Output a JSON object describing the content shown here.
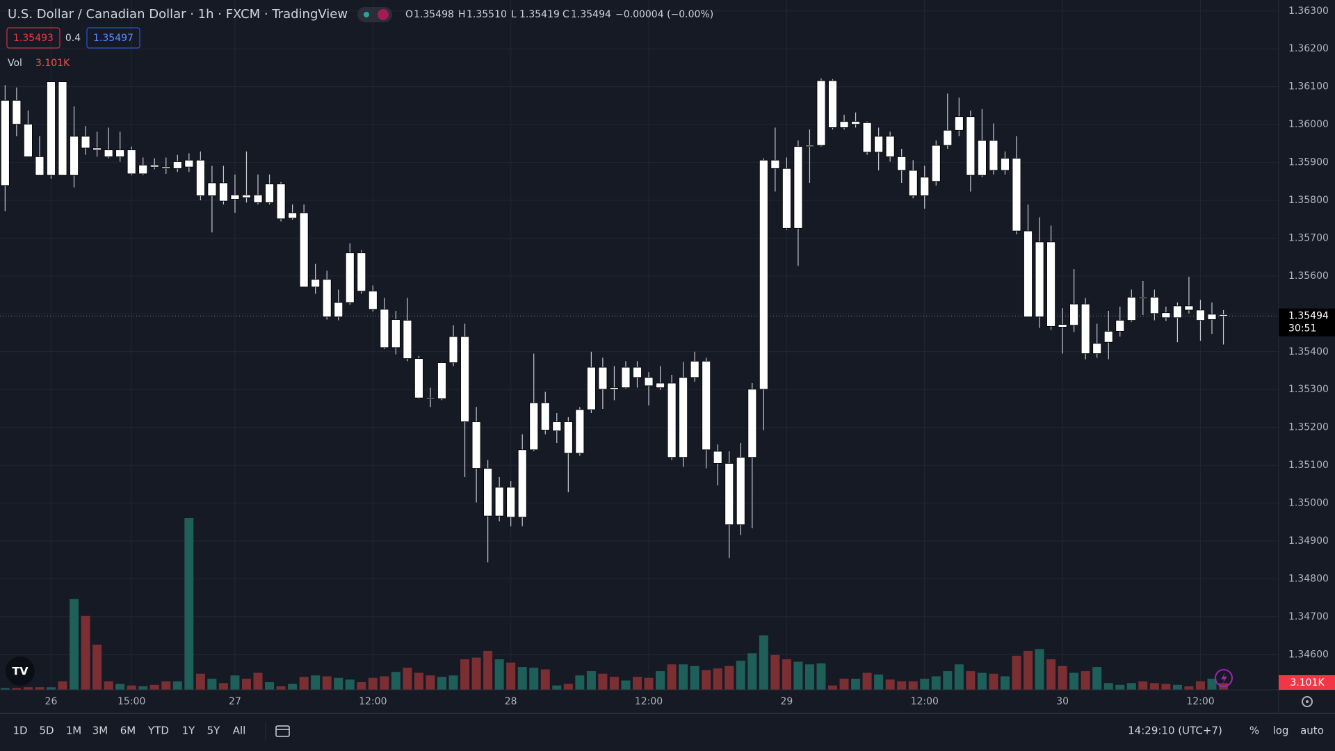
{
  "chart_data": {
    "type": "candlestick",
    "title": "U.S. Dollar / Canadian Dollar · 1h · FXCM · TradingView",
    "ohlc_legend": [
      {
        "key": "O",
        "value": "1.35498"
      },
      {
        "key": "H",
        "value": "1.35510"
      },
      {
        "key": "L",
        "value": "1.35419"
      },
      {
        "key": "C",
        "value": "1.35494"
      }
    ],
    "change": "−0.00004 (−0.00%)",
    "bid": "1.35493",
    "spread": "0.4",
    "ask": "1.35497",
    "last_price": "1.35494",
    "countdown": "30:51",
    "categories": [
      null,
      null,
      null,
      null,
      "26",
      null,
      null,
      null,
      null,
      null,
      null,
      "15:00",
      null,
      null,
      null,
      null,
      null,
      null,
      null,
      null,
      "27",
      null,
      null,
      null,
      null,
      null,
      null,
      null,
      null,
      null,
      null,
      null,
      "12:00",
      null,
      null,
      null,
      null,
      null,
      null,
      null,
      null,
      null,
      null,
      null,
      "28",
      null,
      null,
      null,
      null,
      null,
      null,
      null,
      null,
      null,
      null,
      null,
      "12:00",
      null,
      null,
      null,
      null,
      null,
      null,
      null,
      null,
      null,
      null,
      null,
      "29",
      null,
      null,
      null,
      null,
      null,
      null,
      null,
      null,
      null,
      null,
      null,
      "12:00",
      null,
      null,
      null,
      null,
      null,
      null,
      null,
      null,
      null,
      null,
      null,
      "30",
      null,
      null,
      null,
      null,
      null,
      null,
      null,
      null,
      null,
      null,
      null,
      "12:00",
      null,
      null
    ],
    "open": [
      1.35839,
      1.36064,
      1.36001,
      1.35915,
      1.35866,
      1.36113,
      1.35866,
      1.35969,
      1.35938,
      1.35933,
      1.35915,
      1.35933,
      1.3587,
      1.35893,
      1.35888,
      1.35884,
      1.35888,
      1.35906,
      1.35812,
      1.35846,
      1.35803,
      1.35814,
      1.35814,
      1.35794,
      1.35843,
      1.35753,
      1.35767,
      1.35571,
      1.35591,
      1.35492,
      1.3553,
      1.35661,
      1.3556,
      1.35512,
      1.35411,
      1.35483,
      1.35382,
      1.35278,
      1.35276,
      1.35371,
      1.3544,
      1.35215,
      1.35092,
      1.34966,
      1.35042,
      1.34963,
      1.35141,
      1.35265,
      1.35191,
      1.35215,
      1.35132,
      1.35247,
      1.35359,
      1.35305,
      1.35305,
      1.35359,
      1.35332,
      1.35305,
      1.35317,
      1.35121,
      1.35332,
      1.35375,
      1.35137,
      1.35105,
      1.34943,
      1.35121,
      1.35301,
      1.35906,
      1.35884,
      1.35726,
      1.35942,
      1.35945,
      1.36116,
      1.36008,
      1.36001,
      1.36005,
      1.35927,
      1.35969,
      1.35915,
      1.35879,
      1.35812,
      1.3585,
      1.35945,
      1.35985,
      1.36021,
      1.35866,
      1.35958,
      1.35879,
      1.35911,
      1.35719,
      1.35492,
      1.3569,
      1.35472,
      1.3547,
      1.35526,
      1.35395,
      1.35425,
      1.35454,
      1.35483,
      1.35544,
      1.35544,
      1.35503,
      1.3549,
      1.35521,
      1.3551,
      1.35485,
      1.35498
    ],
    "high": [
      1.36104,
      1.36098,
      1.36037,
      1.35969,
      1.36113,
      1.36113,
      1.36048,
      1.35996,
      1.35981,
      1.35992,
      1.35981,
      1.35942,
      1.35913,
      1.35911,
      1.35913,
      1.3592,
      1.35924,
      1.35929,
      1.35891,
      1.35891,
      1.35868,
      1.35929,
      1.35868,
      1.35868,
      1.35848,
      1.35789,
      1.35789,
      1.35632,
      1.35614,
      1.35564,
      1.35686,
      1.35668,
      1.35575,
      1.35542,
      1.35508,
      1.35542,
      1.35389,
      1.35305,
      1.35373,
      1.3547,
      1.35474,
      1.35254,
      1.35114,
      1.35069,
      1.35058,
      1.35182,
      1.35395,
      1.35294,
      1.35238,
      1.35227,
      1.35254,
      1.354,
      1.35384,
      1.35362,
      1.35375,
      1.35375,
      1.35346,
      1.35362,
      1.35339,
      1.35373,
      1.354,
      1.35384,
      1.35155,
      1.35137,
      1.35159,
      1.35317,
      1.35911,
      1.35992,
      1.35913,
      1.35958,
      1.35987,
      1.36122,
      1.3612,
      1.36026,
      1.36032,
      1.36008,
      1.35992,
      1.35981,
      1.35936,
      1.35906,
      1.35891,
      1.35958,
      1.36082,
      1.36071,
      1.36037,
      1.36041,
      1.36003,
      1.35929,
      1.35969,
      1.35789,
      1.35755,
      1.35733,
      1.35515,
      1.35618,
      1.35542,
      1.35474,
      1.35508,
      1.35519,
      1.35564,
      1.35587,
      1.35564,
      1.35519,
      1.3553,
      1.35598,
      1.35537,
      1.3553,
      1.3551
    ],
    "low": [
      1.35771,
      1.35969,
      1.35915,
      1.35866,
      1.35857,
      1.35866,
      1.35834,
      1.3592,
      1.35915,
      1.35911,
      1.35902,
      1.35866,
      1.35866,
      1.35882,
      1.3587,
      1.35875,
      1.35875,
      1.358,
      1.35715,
      1.35789,
      1.35767,
      1.35794,
      1.35789,
      1.35789,
      1.35744,
      1.35749,
      1.35571,
      1.35553,
      1.35485,
      1.35483,
      1.35524,
      1.35553,
      1.35506,
      1.35407,
      1.35393,
      1.35375,
      1.35276,
      1.35254,
      1.35272,
      1.35362,
      1.35069,
      1.35002,
      1.34844,
      1.34952,
      1.34939,
      1.34939,
      1.35137,
      1.35182,
      1.35159,
      1.35029,
      1.35125,
      1.35238,
      1.35249,
      1.35272,
      1.35303,
      1.35305,
      1.35258,
      1.35299,
      1.35114,
      1.35096,
      1.35321,
      1.35092,
      1.35047,
      1.34855,
      1.34916,
      1.34934,
      1.35193,
      1.35823,
      1.35722,
      1.35627,
      1.35846,
      1.35942,
      1.35987,
      1.35987,
      1.35992,
      1.3592,
      1.35879,
      1.35902,
      1.35846,
      1.35805,
      1.35778,
      1.35839,
      1.35936,
      1.35969,
      1.35823,
      1.35861,
      1.35868,
      1.35868,
      1.3571,
      1.35492,
      1.35463,
      1.35458,
      1.35395,
      1.35452,
      1.3538,
      1.35384,
      1.3538,
      1.3544,
      1.35479,
      1.35497,
      1.35483,
      1.35481,
      1.35425,
      1.35501,
      1.35429,
      1.35447,
      1.35419
    ],
    "close": [
      1.36064,
      1.36001,
      1.35915,
      1.35866,
      1.36113,
      1.35866,
      1.35969,
      1.35938,
      1.35933,
      1.35915,
      1.35933,
      1.3587,
      1.35893,
      1.35888,
      1.35884,
      1.35902,
      1.35906,
      1.35812,
      1.35846,
      1.35798,
      1.35814,
      1.35807,
      1.35794,
      1.35843,
      1.35751,
      1.35767,
      1.35571,
      1.35591,
      1.35492,
      1.3553,
      1.35661,
      1.3556,
      1.35512,
      1.35411,
      1.35485,
      1.35382,
      1.35278,
      1.35276,
      1.35371,
      1.3544,
      1.35215,
      1.35092,
      1.34966,
      1.35042,
      1.34963,
      1.35141,
      1.35265,
      1.35193,
      1.35215,
      1.35132,
      1.35247,
      1.35359,
      1.35301,
      1.35301,
      1.35359,
      1.35332,
      1.3531,
      1.35317,
      1.35121,
      1.35332,
      1.35375,
      1.35141,
      1.35105,
      1.34943,
      1.35121,
      1.35301,
      1.35906,
      1.35884,
      1.35726,
      1.35942,
      1.35945,
      1.36116,
      1.35992,
      1.35992,
      1.36008,
      1.35927,
      1.35969,
      1.35915,
      1.35879,
      1.35812,
      1.35861,
      1.35945,
      1.35985,
      1.36021,
      1.35866,
      1.35958,
      1.35879,
      1.35911,
      1.35719,
      1.35492,
      1.3569,
      1.35467,
      1.35465,
      1.35526,
      1.35395,
      1.35422,
      1.35454,
      1.35483,
      1.35544,
      1.35542,
      1.35501,
      1.3549,
      1.35521,
      1.3551,
      1.35483,
      1.35499,
      1.35494
    ],
    "volume": {
      "name": "Vol",
      "label": "3.101K",
      "values": [
        800,
        800,
        1200,
        1200,
        1200,
        3900,
        41700,
        33900,
        20700,
        3900,
        2700,
        2000,
        1600,
        2300,
        3900,
        3900,
        78800,
        7400,
        5100,
        3100,
        6600,
        5100,
        7800,
        3500,
        1600,
        2700,
        5900,
        6600,
        6200,
        5500,
        4700,
        3500,
        5500,
        6200,
        8200,
        10100,
        7800,
        6600,
        5900,
        6600,
        14000,
        14800,
        17900,
        14000,
        12500,
        10500,
        10100,
        9400,
        2000,
        2700,
        6600,
        8600,
        7400,
        5900,
        4300,
        5900,
        5500,
        8600,
        11700,
        11700,
        10900,
        9000,
        9800,
        10900,
        13300,
        16800,
        25000,
        16000,
        14000,
        12900,
        11700,
        12100,
        2000,
        5100,
        5100,
        7800,
        7000,
        4700,
        3900,
        3900,
        5100,
        6200,
        8600,
        11700,
        8600,
        7800,
        7400,
        6200,
        15600,
        17900,
        18700,
        14000,
        10900,
        7800,
        8600,
        10500,
        3100,
        2300,
        3100,
        3900,
        3100,
        2700,
        2300,
        1600,
        3900,
        5100,
        3101
      ]
    },
    "ylim": [
      1.34507,
      1.36329
    ],
    "yticks": [
      {
        "value": 1.346,
        "label": "1.34600"
      },
      {
        "value": 1.347,
        "label": "1.34700"
      },
      {
        "value": 1.348,
        "label": "1.34800"
      },
      {
        "value": 1.349,
        "label": "1.34900"
      },
      {
        "value": 1.35,
        "label": "1.35000"
      },
      {
        "value": 1.351,
        "label": "1.35100"
      },
      {
        "value": 1.352,
        "label": "1.35200"
      },
      {
        "value": 1.353,
        "label": "1.35300"
      },
      {
        "value": 1.354,
        "label": "1.35400"
      },
      {
        "value": 1.355,
        "label": "1.35500"
      },
      {
        "value": 1.356,
        "label": "1.35600"
      },
      {
        "value": 1.357,
        "label": "1.35700"
      },
      {
        "value": 1.358,
        "label": "1.35800"
      },
      {
        "value": 1.359,
        "label": "1.35900"
      },
      {
        "value": 1.36,
        "label": "1.36000"
      },
      {
        "value": 1.361,
        "label": "1.36100"
      },
      {
        "value": 1.362,
        "label": "1.36200"
      },
      {
        "value": 1.363,
        "label": "1.36300"
      }
    ],
    "grid": true,
    "candle_color": "#ffffff",
    "up_volume_color": "#1f5f5a",
    "down_volume_color": "#7b2f33"
  },
  "toolbar": {
    "ranges": [
      "1D",
      "5D",
      "1M",
      "3M",
      "6M",
      "YTD",
      "1Y",
      "5Y",
      "All"
    ],
    "clock": "14:29:10 (UTC+7)",
    "options": [
      "%",
      "log",
      "auto"
    ]
  }
}
